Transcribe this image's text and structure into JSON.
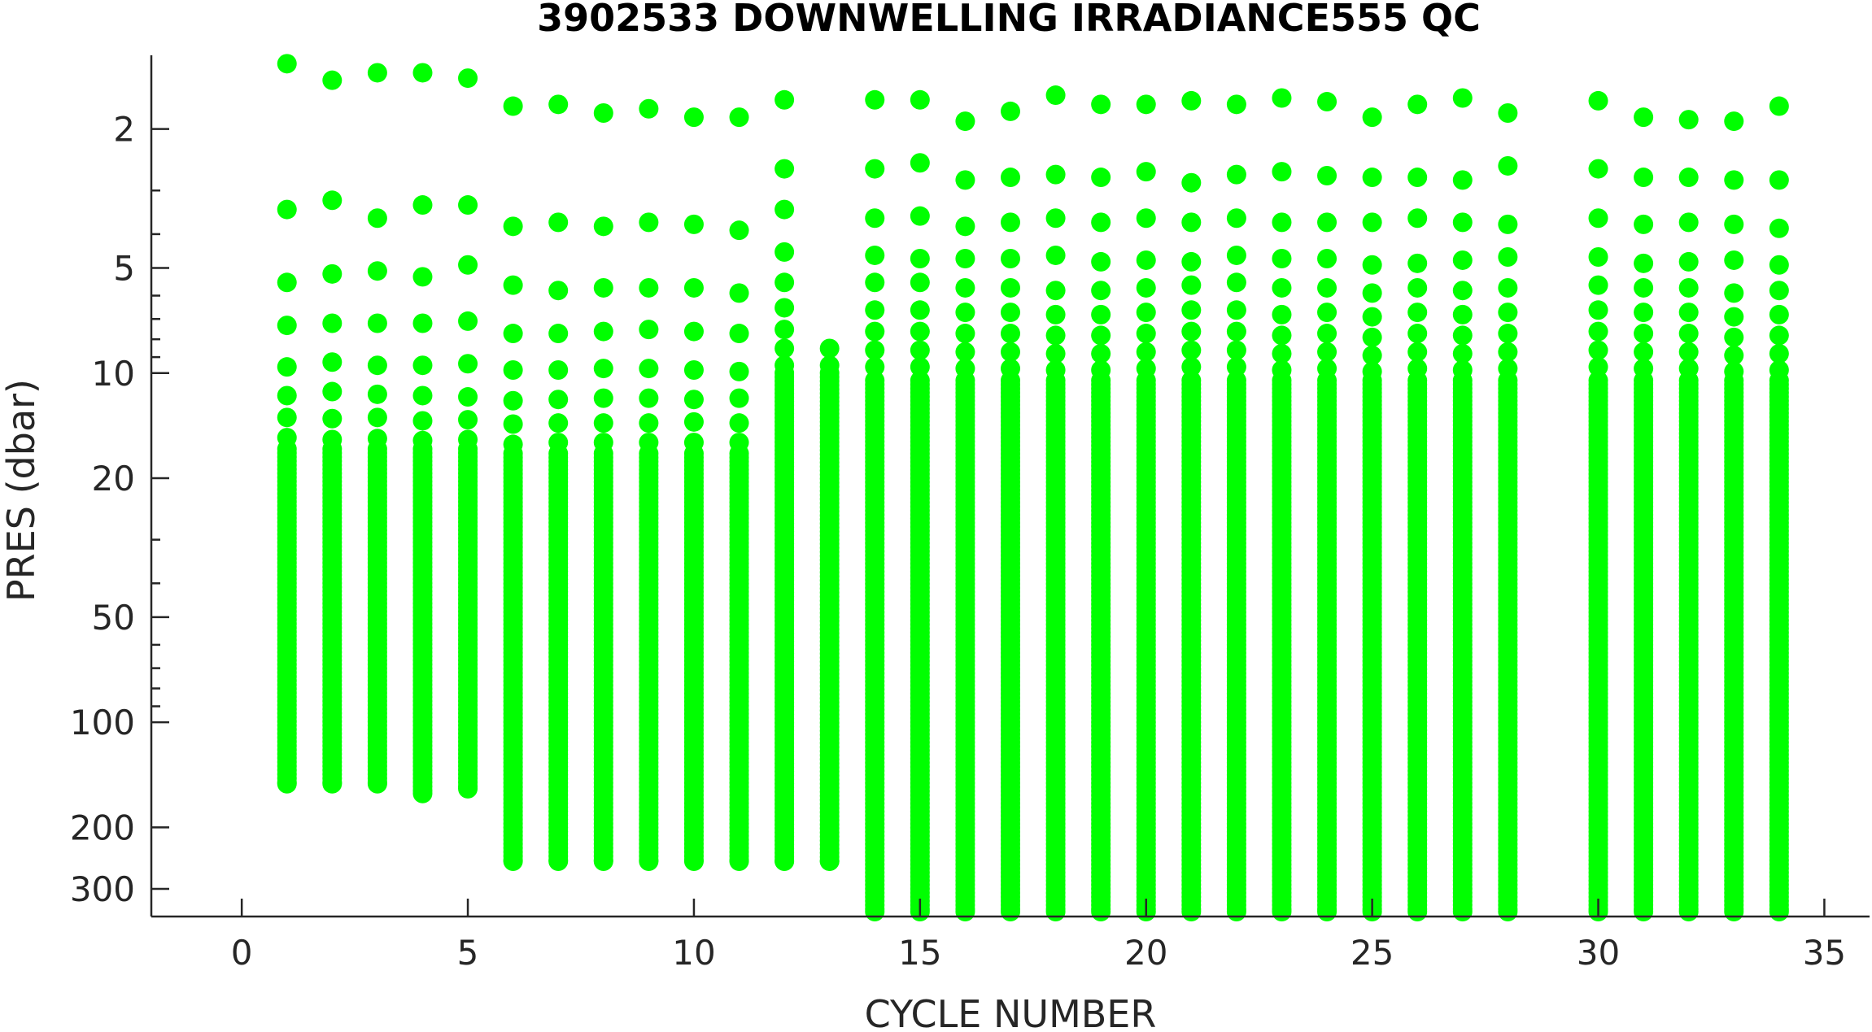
{
  "chart_data": {
    "type": "scatter",
    "title": "3902533  DOWNWELLING IRRADIANCE555 QC",
    "xlabel": "CYCLE NUMBER",
    "ylabel": "PRES (dbar)",
    "xlim": [
      -2,
      36
    ],
    "ylim": [
      1.23,
      360
    ],
    "y_scale": "log",
    "y_reversed": true,
    "x_ticks": [
      0,
      5,
      10,
      15,
      20,
      25,
      30,
      35
    ],
    "x_tick_labels": [
      "0",
      "5",
      "10",
      "15",
      "20",
      "25",
      "30",
      "35"
    ],
    "y_major_ticks": [
      2,
      5,
      10,
      20,
      50,
      100,
      200,
      300
    ],
    "y_tick_labels": [
      "2",
      "5",
      "10",
      "20",
      "50",
      "100",
      "200",
      "300"
    ],
    "y_minor_ticks": [
      3,
      4,
      6,
      7,
      8,
      9,
      30,
      40,
      60,
      70,
      80,
      90
    ],
    "marker_color": "#00ff00",
    "grid": false,
    "series": [
      {
        "profiles": [
          {
            "cycle": 1,
            "pressures": [
              1.3,
              3.4,
              5.5,
              7.3,
              9.6,
              11.6,
              13.4,
              15.3
            ],
            "continuous_from": 16.5,
            "max_pressure": 150
          },
          {
            "cycle": 2,
            "pressures": [
              1.45,
              3.2,
              5.2,
              7.2,
              9.3,
              11.3,
              13.5,
              15.5
            ],
            "continuous_from": 16.5,
            "max_pressure": 150
          },
          {
            "cycle": 3,
            "pressures": [
              1.38,
              3.6,
              5.1,
              7.2,
              9.5,
              11.5,
              13.4,
              15.4
            ],
            "continuous_from": 16.5,
            "max_pressure": 150
          },
          {
            "cycle": 4,
            "pressures": [
              1.38,
              3.3,
              5.3,
              7.2,
              9.5,
              11.6,
              13.7,
              15.6
            ],
            "continuous_from": 16.5,
            "max_pressure": 160
          },
          {
            "cycle": 5,
            "pressures": [
              1.43,
              3.3,
              4.9,
              7.1,
              9.4,
              11.7,
              13.6,
              15.5
            ],
            "continuous_from": 16.5,
            "max_pressure": 155
          },
          {
            "cycle": 6,
            "pressures": [
              1.72,
              3.8,
              5.6,
              7.7,
              9.8,
              12,
              14,
              16
            ],
            "continuous_from": 17,
            "max_pressure": 250
          },
          {
            "cycle": 7,
            "pressures": [
              1.7,
              3.7,
              5.8,
              7.7,
              9.8,
              11.9,
              13.9,
              15.8
            ],
            "continuous_from": 17,
            "max_pressure": 250
          },
          {
            "cycle": 8,
            "pressures": [
              1.8,
              3.8,
              5.7,
              7.6,
              9.7,
              11.8,
              13.9,
              15.8
            ],
            "continuous_from": 17,
            "max_pressure": 250
          },
          {
            "cycle": 9,
            "pressures": [
              1.75,
              3.7,
              5.7,
              7.5,
              9.7,
              11.8,
              13.9,
              15.8
            ],
            "continuous_from": 17,
            "max_pressure": 250
          },
          {
            "cycle": 10,
            "pressures": [
              1.85,
              3.75,
              5.7,
              7.6,
              9.8,
              11.9,
              13.8,
              15.8
            ],
            "continuous_from": 17,
            "max_pressure": 250
          },
          {
            "cycle": 11,
            "pressures": [
              1.85,
              3.9,
              5.9,
              7.7,
              9.9,
              11.8,
              13.9,
              15.8
            ],
            "continuous_from": 17,
            "max_pressure": 250
          },
          {
            "cycle": 12,
            "pressures": [
              1.65,
              2.6,
              3.4,
              4.5,
              5.5,
              6.5,
              7.5,
              8.5,
              9.5
            ],
            "continuous_from": 10,
            "max_pressure": 250
          },
          {
            "cycle": 13,
            "pressures": [
              8.5,
              9.5
            ],
            "continuous_from": 10,
            "max_pressure": 250
          },
          {
            "cycle": 14,
            "pressures": [
              1.65,
              2.6,
              3.6,
              4.6,
              5.5,
              6.6,
              7.6,
              8.6,
              9.6
            ],
            "continuous_from": 10.5,
            "max_pressure": 350
          },
          {
            "cycle": 15,
            "pressures": [
              1.65,
              2.5,
              3.55,
              4.7,
              5.5,
              6.6,
              7.6,
              8.6,
              9.6
            ],
            "continuous_from": 10.5,
            "max_pressure": 350
          },
          {
            "cycle": 16,
            "pressures": [
              1.9,
              2.8,
              3.8,
              4.7,
              5.7,
              6.7,
              7.7,
              8.7,
              9.7
            ],
            "continuous_from": 10.5,
            "max_pressure": 350
          },
          {
            "cycle": 17,
            "pressures": [
              1.78,
              2.75,
              3.7,
              4.7,
              5.7,
              6.7,
              7.7,
              8.7,
              9.7
            ],
            "continuous_from": 10.5,
            "max_pressure": 350
          },
          {
            "cycle": 18,
            "pressures": [
              1.6,
              2.7,
              3.6,
              4.6,
              5.8,
              6.8,
              7.8,
              8.8,
              9.8
            ],
            "continuous_from": 10.5,
            "max_pressure": 350
          },
          {
            "cycle": 19,
            "pressures": [
              1.7,
              2.75,
              3.7,
              4.8,
              5.8,
              6.8,
              7.8,
              8.8,
              9.8
            ],
            "continuous_from": 10.5,
            "max_pressure": 350
          },
          {
            "cycle": 20,
            "pressures": [
              1.7,
              2.65,
              3.6,
              4.75,
              5.7,
              6.7,
              7.7,
              8.7,
              9.7
            ],
            "continuous_from": 10.5,
            "max_pressure": 350
          },
          {
            "cycle": 21,
            "pressures": [
              1.66,
              2.85,
              3.7,
              4.8,
              5.6,
              6.6,
              7.6,
              8.6,
              9.6
            ],
            "continuous_from": 10.5,
            "max_pressure": 350
          },
          {
            "cycle": 22,
            "pressures": [
              1.7,
              2.7,
              3.6,
              4.6,
              5.5,
              6.6,
              7.6,
              8.6,
              9.6
            ],
            "continuous_from": 10.5,
            "max_pressure": 350
          },
          {
            "cycle": 23,
            "pressures": [
              1.63,
              2.65,
              3.7,
              4.7,
              5.7,
              6.8,
              7.8,
              8.8,
              9.8
            ],
            "continuous_from": 10.5,
            "max_pressure": 350
          },
          {
            "cycle": 24,
            "pressures": [
              1.67,
              2.72,
              3.7,
              4.7,
              5.7,
              6.7,
              7.7,
              8.7,
              9.7
            ],
            "continuous_from": 10.5,
            "max_pressure": 350
          },
          {
            "cycle": 25,
            "pressures": [
              1.85,
              2.75,
              3.7,
              4.9,
              5.9,
              6.9,
              7.9,
              8.9,
              9.9
            ],
            "continuous_from": 10.5,
            "max_pressure": 350
          },
          {
            "cycle": 26,
            "pressures": [
              1.7,
              2.75,
              3.6,
              4.85,
              5.7,
              6.7,
              7.7,
              8.7,
              9.7
            ],
            "continuous_from": 10.5,
            "max_pressure": 350
          },
          {
            "cycle": 27,
            "pressures": [
              1.63,
              2.8,
              3.7,
              4.75,
              5.8,
              6.8,
              7.8,
              8.8,
              9.8
            ],
            "continuous_from": 10.5,
            "max_pressure": 350
          },
          {
            "cycle": 28,
            "pressures": [
              1.8,
              2.55,
              3.75,
              4.65,
              5.7,
              6.7,
              7.7,
              8.7,
              9.7
            ],
            "continuous_from": 10.5,
            "max_pressure": 350
          },
          {
            "cycle": 30,
            "pressures": [
              1.66,
              2.6,
              3.6,
              4.65,
              5.6,
              6.6,
              7.6,
              8.6,
              9.6
            ],
            "continuous_from": 10.5,
            "max_pressure": 350
          },
          {
            "cycle": 31,
            "pressures": [
              1.85,
              2.75,
              3.75,
              4.85,
              5.7,
              6.7,
              7.7,
              8.7,
              9.7
            ],
            "continuous_from": 10.5,
            "max_pressure": 350
          },
          {
            "cycle": 32,
            "pressures": [
              1.88,
              2.75,
              3.7,
              4.8,
              5.7,
              6.7,
              7.7,
              8.7,
              9.7
            ],
            "continuous_from": 10.5,
            "max_pressure": 350
          },
          {
            "cycle": 33,
            "pressures": [
              1.9,
              2.8,
              3.75,
              4.75,
              5.9,
              6.9,
              7.9,
              8.9,
              9.9
            ],
            "continuous_from": 10.5,
            "max_pressure": 350
          },
          {
            "cycle": 34,
            "pressures": [
              1.72,
              2.8,
              3.85,
              4.9,
              5.8,
              6.8,
              7.8,
              8.8,
              9.8
            ],
            "continuous_from": 10.5,
            "max_pressure": 350
          }
        ]
      }
    ]
  }
}
